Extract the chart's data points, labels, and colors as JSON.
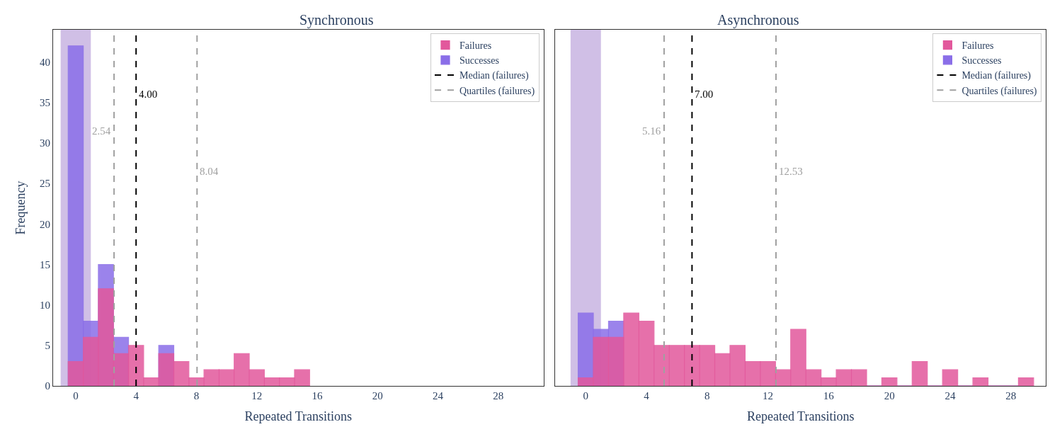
{
  "chart_data": [
    {
      "type": "histogram",
      "title": "Synchronous",
      "xlabel": "Repeated Transitions",
      "ylabel": "Frequency",
      "bins": [
        -0.5,
        0.5,
        1.5,
        2.5,
        3.5,
        4.5,
        5.5,
        6.5,
        7.5,
        8.5,
        9.5,
        10.5,
        11.5,
        12.5,
        13.5,
        14.5,
        15.5
      ],
      "series": [
        {
          "name": "Failures",
          "color": "#e2589c",
          "values": [
            3,
            6,
            12,
            4,
            5,
            1,
            4,
            3,
            1,
            2,
            2,
            4,
            2,
            1,
            1,
            2
          ]
        },
        {
          "name": "Successes",
          "color": "#8a6ee8",
          "values": [
            42,
            8,
            15,
            6,
            null,
            null,
            5,
            null,
            null,
            null,
            null,
            null,
            null,
            null,
            null,
            null
          ]
        },
        {
          "name": "Median (failures)",
          "type": "line",
          "color": "#000000",
          "line_style": "dashed",
          "x": [
            4.0,
            4.0
          ],
          "values": [
            0,
            44
          ]
        },
        {
          "name": "Quartiles (failures)",
          "type": "line",
          "color": "#a0a0a0",
          "line_style": "dashed",
          "x": [
            2.54,
            2.54
          ],
          "values": [
            0,
            44
          ]
        },
        {
          "type": "line",
          "color": "#a0a0a0",
          "line_style": "dashed",
          "x": [
            8.04,
            8.04
          ],
          "values": [
            0,
            44
          ]
        }
      ],
      "xlim": [
        -1.5,
        31
      ],
      "xticks": [
        0,
        4,
        8,
        12,
        16,
        20,
        24,
        28
      ],
      "ylim": [
        0,
        44
      ],
      "yticks": [
        0,
        5,
        10,
        15,
        20,
        25,
        30,
        35,
        40
      ],
      "bands": [
        {
          "axis": "x",
          "from": -1,
          "to": 1,
          "color": "#d0bfe6"
        }
      ],
      "annotations": [
        {
          "text": "4.00",
          "x": 4.0,
          "y": 36
        },
        {
          "text": "2.54",
          "x": 2.54,
          "y": 31.5
        },
        {
          "text": "8.04",
          "x": 8.04,
          "y": 26.5
        }
      ],
      "legend": "top right",
      "grid": false
    },
    {
      "type": "histogram",
      "title": "Asynchronous",
      "xlabel": "Repeated Transitions",
      "bins": [
        -0.5,
        0.5,
        1.5,
        2.5,
        3.5,
        4.5,
        5.5,
        6.5,
        7.5,
        8.5,
        9.5,
        10.5,
        11.5,
        12.5,
        13.5,
        14.5,
        15.5,
        16.5,
        17.5,
        18.5,
        19.5,
        20.5,
        21.5,
        22.5,
        23.5,
        24.5,
        25.5,
        26.5,
        27.5,
        28.5,
        29.5
      ],
      "series": [
        {
          "name": "Failures",
          "color": "#e2589c",
          "values": [
            1,
            6,
            6,
            9,
            8,
            5,
            5,
            5,
            5,
            4,
            5,
            3,
            3,
            2,
            7,
            2,
            1,
            2,
            2,
            0,
            1,
            0,
            3,
            0,
            2,
            0,
            1,
            0,
            0,
            1
          ]
        },
        {
          "name": "Successes",
          "color": "#8a6ee8",
          "values": [
            9,
            7,
            8,
            null,
            null,
            null,
            null,
            null,
            null,
            null,
            null,
            null,
            null,
            null,
            null,
            null,
            null,
            null,
            null,
            0,
            null,
            0,
            null,
            0,
            null,
            0,
            null,
            0,
            0,
            null
          ]
        },
        {
          "name": "Median (failures)",
          "type": "line",
          "color": "#000000",
          "line_style": "dashed",
          "x": [
            7.0,
            7.0
          ],
          "values": [
            0,
            44
          ]
        },
        {
          "name": "Quartiles (failures)",
          "type": "line",
          "color": "#a0a0a0",
          "line_style": "dashed",
          "x": [
            5.16,
            5.16
          ],
          "values": [
            0,
            44
          ]
        },
        {
          "type": "line",
          "color": "#a0a0a0",
          "line_style": "dashed",
          "x": [
            12.53,
            12.53
          ],
          "values": [
            0,
            44
          ]
        }
      ],
      "xlim": [
        -2,
        30.3
      ],
      "xticks": [
        0,
        4,
        8,
        12,
        16,
        20,
        24,
        28
      ],
      "ylim": [
        0,
        44
      ],
      "yticks": [
        0,
        5,
        10,
        15,
        20,
        25,
        30,
        35,
        40
      ],
      "tick_labels": "x",
      "bands": [
        {
          "axis": "x",
          "from": -1,
          "to": 1,
          "color": "#d0bfe6"
        }
      ],
      "annotations": [
        {
          "text": "7.00",
          "x": 7.0,
          "y": 36
        },
        {
          "text": "5.16",
          "x": 5.16,
          "y": 31.5
        },
        {
          "text": "12.53",
          "x": 12.53,
          "y": 26.5
        }
      ],
      "legend": "top right",
      "grid": false
    }
  ]
}
